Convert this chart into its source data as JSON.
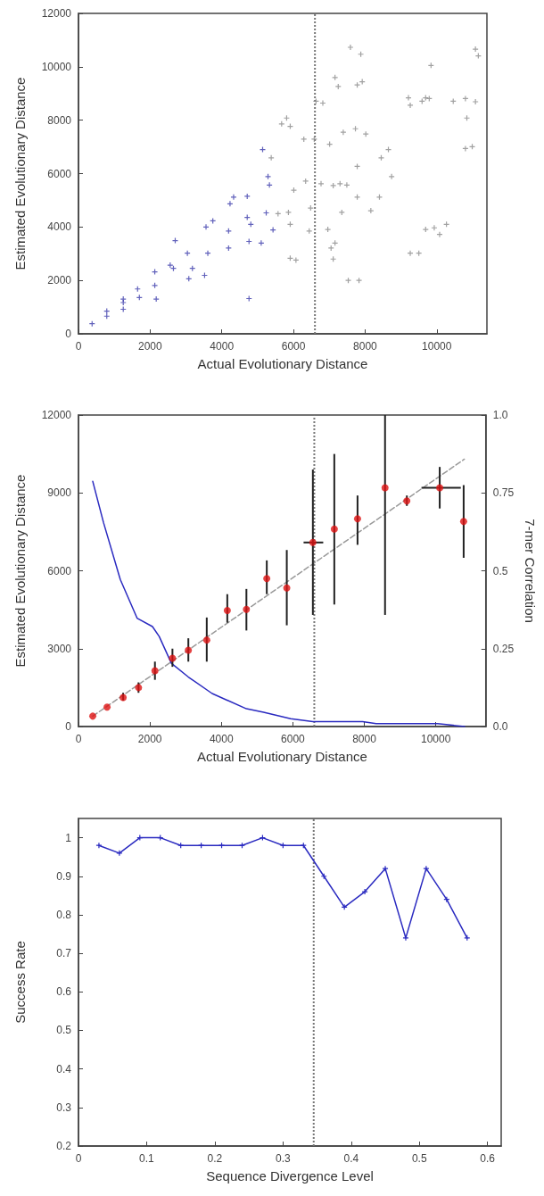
{
  "chart_data": [
    {
      "type": "scatter",
      "xlabel": "Actual Evolutionary Distance",
      "ylabel": "Estimated Evolutionary Distance",
      "xlim": [
        0,
        11400
      ],
      "ylim": [
        0,
        12000
      ],
      "xticks": [
        0,
        2000,
        4000,
        6000,
        8000,
        10000
      ],
      "yticks": [
        0,
        2000,
        4000,
        6000,
        8000,
        10000,
        12000
      ],
      "grid": false,
      "marker": "cross",
      "ref_lines": [
        {
          "axis": "x",
          "value": 6600,
          "color": "#777777",
          "line_style": "dotted"
        }
      ],
      "series": [
        {
          "color": "#3a3aaa",
          "x": [
            380,
            790,
            790,
            1250,
            1250,
            1250,
            1650,
            1700,
            2130,
            2130,
            2170,
            2560,
            2650,
            2700,
            3040,
            3080,
            3180,
            3520,
            3560,
            3610,
            3750,
            4190,
            4190,
            4230,
            4330,
            4710,
            4710,
            4760,
            4810,
            4760,
            5100,
            5240,
            5290,
            5330,
            5140,
            5430
          ],
          "values": [
            380,
            850,
            660,
            1300,
            920,
            1170,
            1680,
            1360,
            2320,
            1810,
            1300,
            2570,
            2450,
            3490,
            3020,
            2060,
            2450,
            2190,
            4000,
            3020,
            4230,
            3850,
            3210,
            4870,
            5120,
            5150,
            4360,
            3460,
            4100,
            1320,
            3400,
            4530,
            5890,
            5570,
            6900,
            3890
          ]
        },
        {
          "color": "#8a8a8a",
          "x": [
            5380,
            5570,
            5670,
            5810,
            5910,
            5860,
            5910,
            5910,
            6070,
            6010,
            6290,
            6340,
            6440,
            6480,
            6630,
            6580,
            6820,
            6770,
            7010,
            6960,
            7050,
            7110,
            7160,
            7250,
            7110,
            7160,
            7300,
            7350,
            7390,
            7490,
            7530,
            7590,
            7730,
            7780,
            7780,
            7780,
            7830,
            7880,
            7920,
            8020,
            8160,
            8400,
            8450,
            8650,
            8740,
            9210,
            9260,
            9260,
            9500,
            9590,
            9690,
            9790,
            9690,
            9840,
            9930,
            10080,
            10270,
            10460,
            10800,
            10840,
            10800,
            10990,
            11080,
            11080,
            11160
          ],
          "values": [
            6590,
            4500,
            7860,
            8080,
            7770,
            4550,
            4100,
            2830,
            2760,
            5380,
            7290,
            5720,
            3850,
            4710,
            8710,
            7290,
            8640,
            5620,
            7100,
            3910,
            3210,
            2800,
            9600,
            9260,
            5550,
            3400,
            5620,
            4550,
            7550,
            5570,
            2000,
            10730,
            7680,
            6270,
            5120,
            9320,
            2000,
            10470,
            9440,
            7480,
            4610,
            5120,
            6590,
            6900,
            5890,
            8840,
            8560,
            3020,
            3020,
            8710,
            8840,
            8810,
            3910,
            10050,
            3970,
            3720,
            4100,
            8710,
            8810,
            8080,
            6940,
            7010,
            8690,
            10660,
            10410
          ]
        }
      ]
    },
    {
      "type": "scatter",
      "xlabel": "Actual Evolutionary Distance",
      "ylabel": "Estimated Evolutionary Distance",
      "y2label": "7-mer Correlation",
      "xlim": [
        0,
        11400
      ],
      "ylim": [
        0,
        12000
      ],
      "y2lim": [
        0,
        1
      ],
      "xticks": [
        0,
        2000,
        4000,
        6000,
        8000,
        10000
      ],
      "yticks": [
        0,
        3000,
        6000,
        9000,
        12000
      ],
      "y2ticks": [
        {
          "value": 0,
          "label": "0.0"
        },
        0.25,
        0.5,
        0.75,
        {
          "value": 1,
          "label": "1.0"
        }
      ],
      "grid": false,
      "ref_lines": [
        {
          "axis": "x",
          "value": 6600,
          "color": "#777777",
          "line_style": "dotted"
        }
      ],
      "series": [
        {
          "type": "line",
          "color": "#999999",
          "line_style": "dashed",
          "marker": "none",
          "x": [
            400,
            10800
          ],
          "values": [
            400,
            10300
          ]
        },
        {
          "type": "line",
          "axis": "y2",
          "color": "#2a2ac0",
          "marker": "none",
          "x": [
            400,
            700,
            1170,
            1640,
            2070,
            2260,
            2600,
            3075,
            3740,
            4700,
            5180,
            5940,
            6560,
            7950,
            8330,
            10050,
            10810
          ],
          "values": [
            0.787,
            0.655,
            0.472,
            0.348,
            0.321,
            0.289,
            0.203,
            0.159,
            0.106,
            0.057,
            0.046,
            0.025,
            0.016,
            0.016,
            0.009,
            0.009,
            0
          ]
        },
        {
          "type": "scatter",
          "color": "#dd1111",
          "marker": "circle",
          "x": [
            400,
            800,
            1250,
            1680,
            2140,
            2630,
            3075,
            3590,
            4165,
            4700,
            5270,
            5830,
            6560,
            7160,
            7810,
            8580,
            9190,
            10110,
            10780
          ],
          "values": [
            400,
            750,
            1120,
            1500,
            2150,
            2630,
            2940,
            3330,
            4470,
            4510,
            5700,
            5340,
            7090,
            7610,
            8000,
            9200,
            8690,
            9200,
            7900
          ],
          "errors": [
            null,
            null,
            [
              1000,
              1300
            ],
            [
              1300,
              1700
            ],
            [
              1800,
              2500
            ],
            [
              2300,
              3000
            ],
            [
              2500,
              3400
            ],
            [
              2500,
              4200
            ],
            [
              4000,
              5100
            ],
            [
              3700,
              5300
            ],
            [
              5100,
              6400
            ],
            [
              3900,
              6800
            ],
            [
              4300,
              9900
            ],
            [
              4700,
              10500
            ],
            [
              7000,
              8900
            ],
            [
              4300,
              12000
            ],
            [
              8500,
              8900
            ],
            [
              8400,
              10000
            ],
            [
              6500,
              9300
            ]
          ],
          "xerrors": [
            null,
            null,
            null,
            null,
            null,
            null,
            null,
            null,
            null,
            null,
            null,
            null,
            [
              6300,
              6850
            ],
            null,
            null,
            null,
            null,
            [
              9600,
              10700
            ],
            null
          ]
        }
      ]
    },
    {
      "type": "line",
      "xlabel": "Sequence Divergence Level",
      "ylabel": "Success Rate",
      "xlim": [
        0,
        0.62
      ],
      "ylim": [
        0.2,
        1.05
      ],
      "xticks": [
        0,
        0.1,
        0.2,
        0.3,
        0.4,
        0.5,
        0.6
      ],
      "yticks": [
        0.2,
        0.3,
        0.4,
        0.5,
        0.6,
        0.7,
        0.8,
        0.9,
        1
      ],
      "grid": false,
      "marker": "cross",
      "ref_lines": [
        {
          "axis": "x",
          "value": 0.345,
          "color": "#777777",
          "line_style": "dotted"
        }
      ],
      "series": [
        {
          "color": "#2a2ac0",
          "x": [
            0.03,
            0.06,
            0.09,
            0.12,
            0.15,
            0.18,
            0.21,
            0.24,
            0.27,
            0.3,
            0.33,
            0.36,
            0.39,
            0.42,
            0.45,
            0.48,
            0.51,
            0.54,
            0.57
          ],
          "values": [
            0.98,
            0.96,
            1,
            1,
            0.98,
            0.98,
            0.98,
            0.98,
            1,
            0.98,
            0.98,
            0.9,
            0.82,
            0.86,
            0.92,
            0.74,
            0.92,
            0.84,
            0.74
          ]
        }
      ]
    }
  ]
}
